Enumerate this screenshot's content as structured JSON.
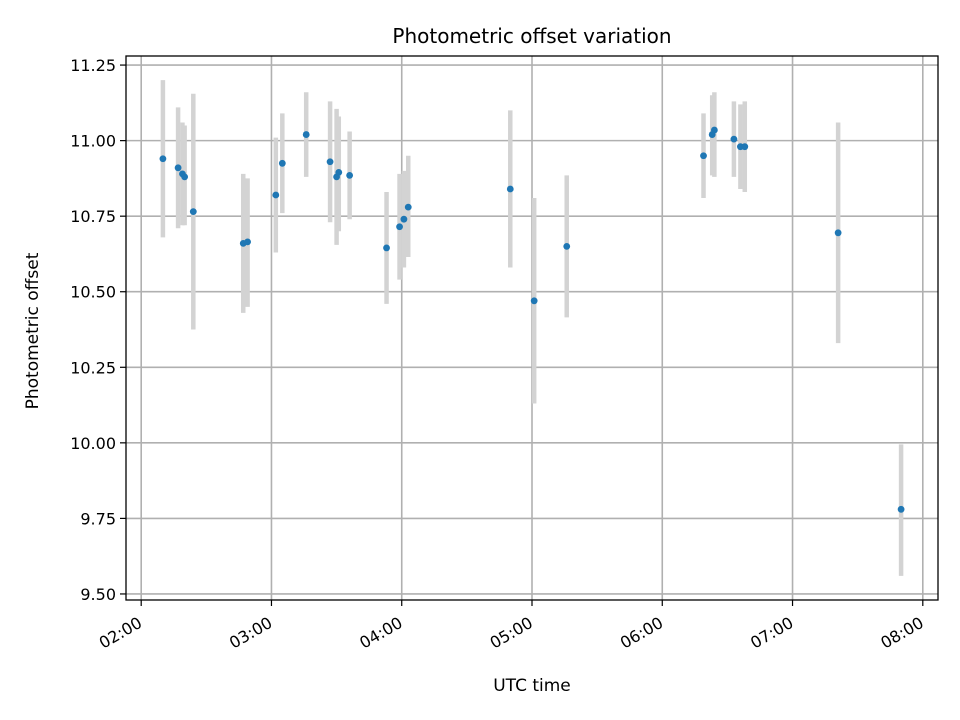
{
  "chart_data": {
    "type": "scatter",
    "title": "Photometric offset variation",
    "xlabel": "UTC time",
    "ylabel": "Photometric offset",
    "x_is_time": true,
    "xlim": [
      "01:53",
      "08:07"
    ],
    "ylim": [
      9.48,
      11.28
    ],
    "x_ticks": [
      "02:00",
      "03:00",
      "04:00",
      "05:00",
      "06:00",
      "07:00",
      "08:00"
    ],
    "y_ticks": [
      "9.50",
      "9.75",
      "10.00",
      "10.25",
      "10.50",
      "10.75",
      "11.00",
      "11.25"
    ],
    "grid": true,
    "marker_color": "#1f77b4",
    "errorbar_color": "#d3d3d3",
    "points": [
      {
        "t": "02:10",
        "y": 10.94,
        "err_low": 10.68,
        "err_high": 11.2
      },
      {
        "t": "02:17",
        "y": 10.91,
        "err_low": 10.71,
        "err_high": 11.11
      },
      {
        "t": "02:19",
        "y": 10.89,
        "err_low": 10.72,
        "err_high": 11.06
      },
      {
        "t": "02:20",
        "y": 10.88,
        "err_low": 10.72,
        "err_high": 11.05
      },
      {
        "t": "02:24",
        "y": 10.765,
        "err_low": 10.375,
        "err_high": 11.155
      },
      {
        "t": "02:47",
        "y": 10.66,
        "err_low": 10.43,
        "err_high": 10.89
      },
      {
        "t": "02:49",
        "y": 10.665,
        "err_low": 10.45,
        "err_high": 10.875
      },
      {
        "t": "03:02",
        "y": 10.82,
        "err_low": 10.63,
        "err_high": 11.01
      },
      {
        "t": "03:05",
        "y": 10.925,
        "err_low": 10.76,
        "err_high": 11.09
      },
      {
        "t": "03:16",
        "y": 11.02,
        "err_low": 10.88,
        "err_high": 11.16
      },
      {
        "t": "03:27",
        "y": 10.93,
        "err_low": 10.73,
        "err_high": 11.13
      },
      {
        "t": "03:30",
        "y": 10.88,
        "err_low": 10.655,
        "err_high": 11.105
      },
      {
        "t": "03:31",
        "y": 10.895,
        "err_low": 10.7,
        "err_high": 11.08
      },
      {
        "t": "03:36",
        "y": 10.885,
        "err_low": 10.74,
        "err_high": 11.03
      },
      {
        "t": "03:53",
        "y": 10.645,
        "err_low": 10.46,
        "err_high": 10.83
      },
      {
        "t": "03:59",
        "y": 10.715,
        "err_low": 10.54,
        "err_high": 10.89
      },
      {
        "t": "04:01",
        "y": 10.74,
        "err_low": 10.58,
        "err_high": 10.9
      },
      {
        "t": "04:03",
        "y": 10.78,
        "err_low": 10.615,
        "err_high": 10.95
      },
      {
        "t": "04:50",
        "y": 10.84,
        "err_low": 10.58,
        "err_high": 11.1
      },
      {
        "t": "05:01",
        "y": 10.47,
        "err_low": 10.13,
        "err_high": 10.81
      },
      {
        "t": "05:16",
        "y": 10.65,
        "err_low": 10.415,
        "err_high": 10.885
      },
      {
        "t": "06:19",
        "y": 10.95,
        "err_low": 10.81,
        "err_high": 11.09
      },
      {
        "t": "06:23",
        "y": 11.02,
        "err_low": 10.885,
        "err_high": 11.15
      },
      {
        "t": "06:24",
        "y": 11.035,
        "err_low": 10.88,
        "err_high": 11.16
      },
      {
        "t": "06:33",
        "y": 11.005,
        "err_low": 10.88,
        "err_high": 11.13
      },
      {
        "t": "06:36",
        "y": 10.98,
        "err_low": 10.84,
        "err_high": 11.12
      },
      {
        "t": "06:38",
        "y": 10.98,
        "err_low": 10.83,
        "err_high": 11.13
      },
      {
        "t": "07:21",
        "y": 10.695,
        "err_low": 10.33,
        "err_high": 11.06
      },
      {
        "t": "07:50",
        "y": 9.78,
        "err_low": 9.56,
        "err_high": 9.995
      }
    ]
  }
}
